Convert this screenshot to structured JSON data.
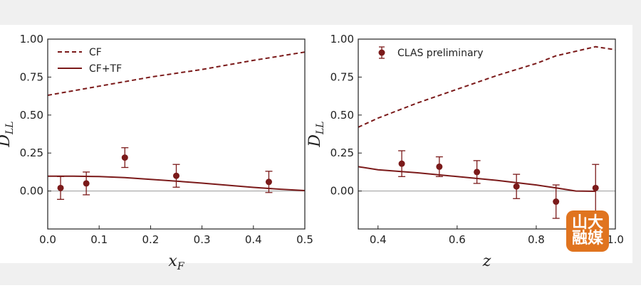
{
  "figure": {
    "background": "#f0f0f0",
    "line_color": "#7b1a1a",
    "marker_color": "#7b1a1a",
    "zero_line_color": "#9a9a9a"
  },
  "chart_data": [
    {
      "type": "line",
      "xlabel": "x_F",
      "ylabel": "D_LL",
      "xlim": [
        0.0,
        0.5
      ],
      "ylim": [
        -0.25,
        1.0
      ],
      "xticks": [
        "0.0",
        "0.1",
        "0.2",
        "0.3",
        "0.4",
        "0.5"
      ],
      "yticks": [
        "0.00",
        "0.25",
        "0.50",
        "0.75",
        "1.00"
      ],
      "legend_position": "top-left",
      "series": [
        {
          "name": "CF",
          "style": "dashed",
          "x": [
            0.0,
            0.1,
            0.2,
            0.3,
            0.4,
            0.5
          ],
          "y": [
            0.63,
            0.69,
            0.75,
            0.8,
            0.86,
            0.915
          ]
        },
        {
          "name": "CF+TF",
          "style": "solid",
          "x": [
            0.0,
            0.05,
            0.1,
            0.15,
            0.2,
            0.25,
            0.3,
            0.35,
            0.4,
            0.45,
            0.5
          ],
          "y": [
            0.098,
            0.098,
            0.095,
            0.088,
            0.077,
            0.065,
            0.052,
            0.038,
            0.024,
            0.012,
            0.003
          ]
        }
      ],
      "points": [
        {
          "x": 0.025,
          "y": 0.02,
          "err": 0.075
        },
        {
          "x": 0.075,
          "y": 0.05,
          "err": 0.075
        },
        {
          "x": 0.15,
          "y": 0.22,
          "err": 0.065
        },
        {
          "x": 0.25,
          "y": 0.1,
          "err": 0.075
        },
        {
          "x": 0.43,
          "y": 0.06,
          "err": 0.07
        }
      ]
    },
    {
      "type": "line",
      "xlabel": "z",
      "ylabel": "D_LL",
      "xlim": [
        0.35,
        1.0
      ],
      "ylim": [
        -0.25,
        1.0
      ],
      "xticks": [
        "0.4",
        "0.6",
        "0.8",
        "1.0"
      ],
      "yticks": [
        "0.00",
        "0.25",
        "0.50",
        "0.75",
        "1.00"
      ],
      "legend_position": "top-left",
      "legend_label": "CLAS preliminary",
      "series": [
        {
          "name": "",
          "style": "dashed",
          "x": [
            0.35,
            0.4,
            0.5,
            0.6,
            0.7,
            0.8,
            0.85,
            0.9,
            0.95,
            1.0
          ],
          "y": [
            0.42,
            0.48,
            0.58,
            0.67,
            0.76,
            0.84,
            0.89,
            0.92,
            0.95,
            0.93
          ]
        },
        {
          "name": "",
          "style": "solid",
          "x": [
            0.35,
            0.4,
            0.5,
            0.6,
            0.7,
            0.8,
            0.85,
            0.9,
            0.95
          ],
          "y": [
            0.16,
            0.14,
            0.12,
            0.095,
            0.07,
            0.04,
            0.02,
            0.0,
            -0.002
          ]
        }
      ],
      "points": [
        {
          "x": 0.46,
          "y": 0.18,
          "err": 0.085
        },
        {
          "x": 0.555,
          "y": 0.16,
          "err": 0.065
        },
        {
          "x": 0.65,
          "y": 0.125,
          "err": 0.075
        },
        {
          "x": 0.75,
          "y": 0.03,
          "err": 0.08
        },
        {
          "x": 0.85,
          "y": -0.07,
          "err": 0.11
        },
        {
          "x": 0.95,
          "y": 0.02,
          "err": 0.155
        }
      ]
    }
  ],
  "legend": {
    "left": [
      "CF",
      "CF+TF"
    ],
    "right": "CLAS preliminary"
  },
  "logo": {
    "text_top": "山大",
    "text_bottom": "融媒"
  }
}
